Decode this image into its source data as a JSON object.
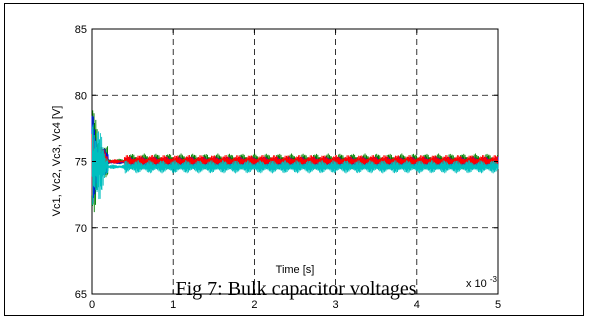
{
  "caption": "Fig 7: Bulk capacitor voltages",
  "chart_data": {
    "type": "line",
    "title": "",
    "xlabel": "Time [s]",
    "ylabel": "Vc1, Vc2, Vc3, Vc4 [V]",
    "x_multiplier_label": "x 10",
    "x_multiplier_exponent": "-3",
    "xlim": [
      0,
      5
    ],
    "ylim": [
      65,
      85
    ],
    "xticks": [
      0,
      1,
      2,
      3,
      4,
      5
    ],
    "yticks": [
      65,
      70,
      75,
      80,
      85
    ],
    "grid": true,
    "series": [
      {
        "color": "#008000",
        "start_amplitude": 5.2,
        "steady_center": 75.0,
        "steady_amplitude": 0.6,
        "phase": 0.0
      },
      {
        "color": "#0000ff",
        "start_amplitude": 4.0,
        "steady_center": 74.95,
        "steady_amplitude": 0.4,
        "phase": 1.1
      },
      {
        "color": "#ff0000",
        "start_amplitude": 3.0,
        "steady_center": 75.0,
        "steady_amplitude": 0.5,
        "phase": 2.3
      },
      {
        "color": "#00bfbf",
        "start_amplitude": 7.0,
        "steady_center": 74.6,
        "steady_amplitude": 0.5,
        "phase": 3.4
      }
    ]
  }
}
